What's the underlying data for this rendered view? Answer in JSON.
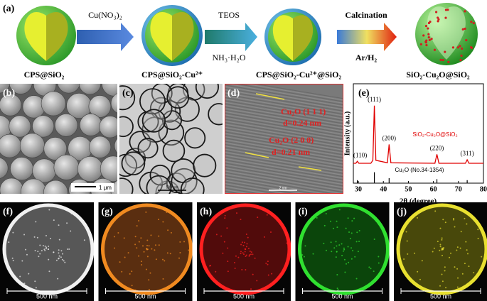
{
  "scheme": {
    "label": "(a)",
    "reagents": [
      "Cu(NO₃)₂",
      "TEOS",
      "NH₃·H₂O",
      "Calcination",
      "Ar/H₂"
    ],
    "products": [
      "CPS@SiO₂",
      "CPS@SiO₂-Cu²⁺",
      "CPS@SiO₂-Cu²⁺@SiO₂",
      "SiO₂-Cu₂O@SiO₂"
    ]
  },
  "panel_b": {
    "label": "(b)",
    "scale": "1 μm"
  },
  "panel_c": {
    "label": "(c)",
    "scale": "500 nm"
  },
  "panel_d": {
    "label": "(d)",
    "annotations": [
      "Cu₂O (1 1 1)",
      "d=0.24 nm",
      "Cu₂O (2 0 0)",
      "d=0.21 nm"
    ],
    "scale": "2 nm"
  },
  "chart_data": {
    "type": "line",
    "label": "(e)",
    "xlabel": "2θ (degree)",
    "ylabel": "Intensity (a.u.)",
    "xlim": [
      28,
      80
    ],
    "xticks": [
      30,
      40,
      50,
      60,
      70,
      80
    ],
    "ylim": [
      0,
      100
    ],
    "series": [
      {
        "name": "SiO₂-Cu₂O@SiO₂",
        "color": "#e00000",
        "x": [
          28,
          29,
          29.6,
          30.2,
          35,
          35.8,
          36.4,
          37,
          41.6,
          42.3,
          43,
          60.6,
          61.4,
          62.2,
          72.8,
          73.5,
          74.2,
          80
        ],
        "values": [
          20,
          20,
          22,
          20,
          20,
          23,
          78,
          23,
          20.5,
          39,
          20.5,
          20,
          29,
          20,
          20,
          23.5,
          20,
          20
        ]
      }
    ],
    "reference": {
      "name": "Cu₂O (No.34-1354)",
      "color": "#000000",
      "x": [
        29.6,
        36.4,
        42.3,
        61.4,
        73.5
      ],
      "values": [
        3,
        11,
        5,
        4,
        3
      ]
    },
    "peak_labels": [
      "(110)",
      "(111)",
      "(200)",
      "(220)",
      "(311)"
    ]
  },
  "mapping": [
    {
      "label": "(f)",
      "scale": "500 nm"
    },
    {
      "label": "(g)",
      "scale": "500 nm"
    },
    {
      "label": "(h)",
      "scale": "500 nm"
    },
    {
      "label": "(i)",
      "scale": "500 nm"
    },
    {
      "label": "(j)",
      "scale": "500 nm"
    }
  ]
}
